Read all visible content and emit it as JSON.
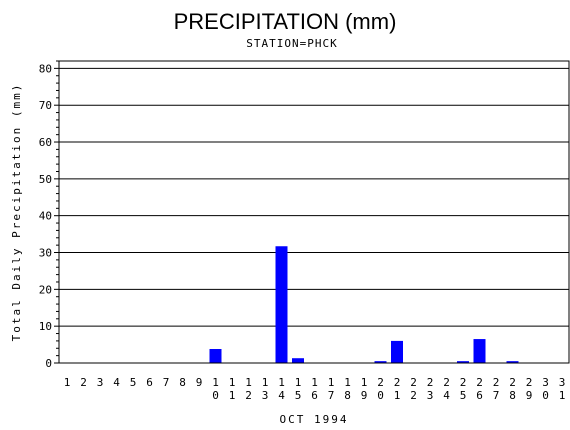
{
  "chart_data": {
    "type": "bar",
    "title": "PRECIPITATION (mm)",
    "subtitle": "STATION=PHCK",
    "xlabel": "OCT 1994",
    "ylabel": "Total Daily Precipitation (mm)",
    "ylim": [
      0,
      82
    ],
    "yticks": [
      0,
      10,
      20,
      30,
      40,
      50,
      60,
      70,
      80
    ],
    "grid": true,
    "bar_color": "#0000ff",
    "categories": [
      "1",
      "2",
      "3",
      "4",
      "5",
      "6",
      "7",
      "8",
      "9",
      "10",
      "11",
      "12",
      "13",
      "14",
      "15",
      "16",
      "17",
      "18",
      "19",
      "20",
      "21",
      "22",
      "23",
      "24",
      "25",
      "26",
      "27",
      "28",
      "29",
      "30",
      "31"
    ],
    "values": [
      0,
      0,
      0,
      0,
      0,
      0,
      0,
      0,
      0,
      3.8,
      0,
      0,
      0,
      31.7,
      1.3,
      0,
      0,
      0,
      0,
      0.5,
      6.0,
      0,
      0,
      0,
      0.5,
      6.5,
      0,
      0.5,
      0,
      0,
      0
    ]
  }
}
